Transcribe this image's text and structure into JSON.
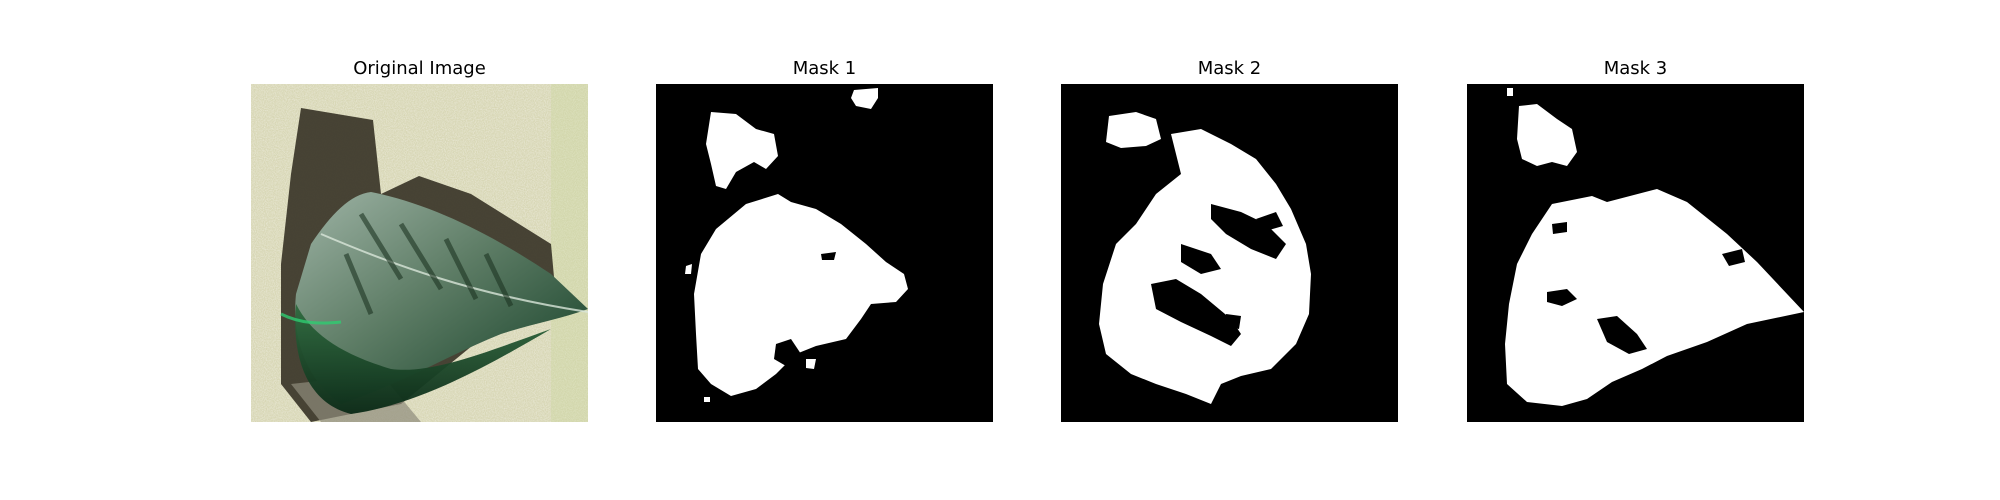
{
  "figure": {
    "panels": [
      {
        "title": "Original Image"
      },
      {
        "title": "Mask 1"
      },
      {
        "title": "Mask 2"
      },
      {
        "title": "Mask 3"
      }
    ]
  },
  "colors": {
    "mask_background": "#000000",
    "mask_foreground": "#ffffff",
    "photo_background": "#d9d8b8",
    "leaf_dark": "#1e3a24",
    "leaf_light": "#8fa898",
    "shadow": "#3a3528"
  }
}
